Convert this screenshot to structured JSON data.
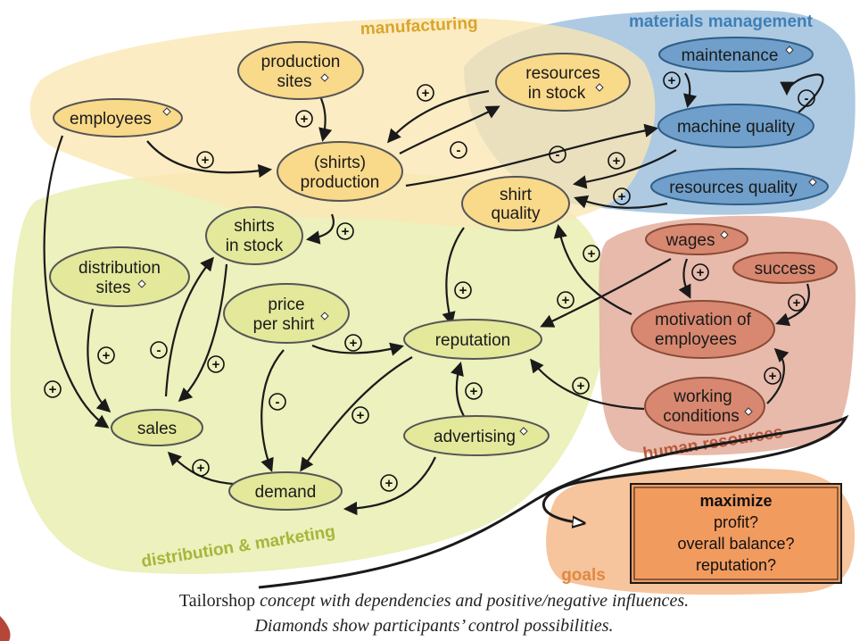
{
  "regions": {
    "manufacturing": "manufacturing",
    "materials": "materials management",
    "distribution": "distribution & marketing",
    "hr": "human resources",
    "goals": "goals"
  },
  "nodes": {
    "employees": "employees",
    "production_sites_1": "production",
    "production_sites_2": "sites",
    "production_1": "(shirts)",
    "production_2": "production",
    "resources_stock_1": "resources",
    "resources_stock_2": "in stock",
    "maintenance": "maintenance",
    "machine_quality": "machine quality",
    "resources_quality": "resources quality",
    "shirt_quality_1": "shirt",
    "shirt_quality_2": "quality",
    "shirts_stock_1": "shirts",
    "shirts_stock_2": "in stock",
    "distribution_sites_1": "distribution",
    "distribution_sites_2": "sites",
    "price_1": "price",
    "price_2": "per shirt",
    "reputation": "reputation",
    "sales": "sales",
    "demand": "demand",
    "advertising": "advertising",
    "wages": "wages",
    "success": "success",
    "motivation_1": "motivation of",
    "motivation_2": "employees",
    "working_1": "working",
    "working_2": "conditions"
  },
  "signs": {
    "plus": "+",
    "minus": "-"
  },
  "goals": {
    "title": "maximize",
    "items": [
      "profit?",
      "overall balance?",
      "reputation?"
    ]
  },
  "caption": {
    "line1_roman": "Tailorshop",
    "line1_italic": " concept with dependencies and positive/negative influences.",
    "line2": "Diamonds show participants’ control possibilities."
  },
  "colors": {
    "manufacturing_bg": "#fbe7b4",
    "materials_bg": "#a9c7e0",
    "distribution_bg": "#eaf0b6",
    "hr_bg": "#e6b6a7",
    "goals_bg": "#f5c198",
    "node_yellow": "#f9d98a",
    "node_blue": "#6f9fca",
    "node_green": "#e3e89b",
    "node_red": "#d88870",
    "goals_box": "#f29b5f"
  }
}
